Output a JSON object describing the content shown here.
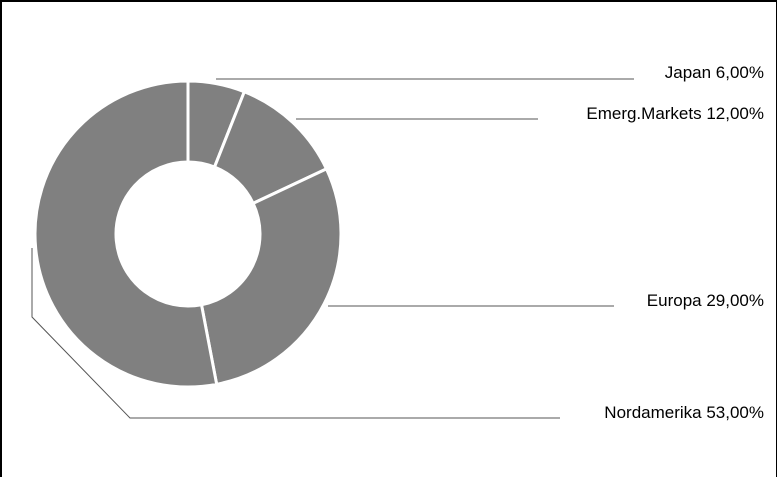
{
  "chart_data": {
    "type": "pie",
    "style": "donut",
    "slices": [
      {
        "name": "Japan",
        "value": 6.0,
        "label": "Japan 6,00%"
      },
      {
        "name": "Emerg.Markets",
        "value": 12.0,
        "label": "Emerg.Markets 12,00%"
      },
      {
        "name": "Europa",
        "value": 29.0,
        "label": "Europa 29,00%"
      },
      {
        "name": "Nordamerika",
        "value": 53.0,
        "label": "Nordamerika 53,00%"
      }
    ],
    "slice_color": "#808080",
    "separator_color": "#ffffff",
    "leader_color": "#555555",
    "legend": "none"
  }
}
